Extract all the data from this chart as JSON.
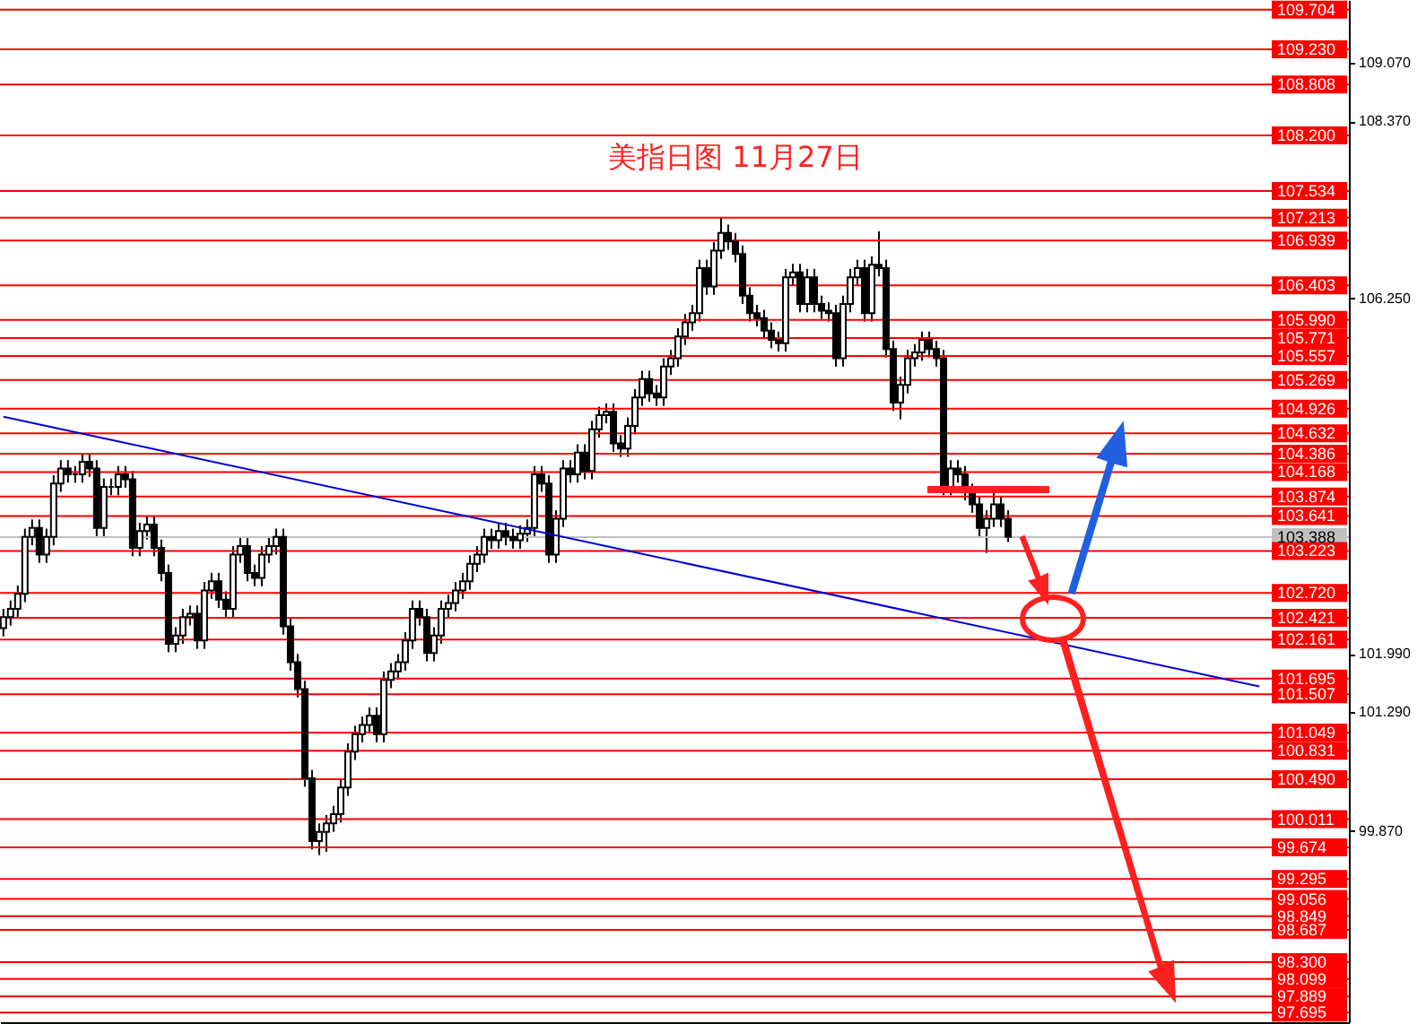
{
  "chart_data": {
    "type": "candlestick",
    "title": "美指日图  11月27日",
    "categories": [
      null,
      null,
      null,
      null,
      null,
      null,
      null,
      null,
      null,
      null,
      null,
      null,
      null,
      null,
      null,
      null,
      null,
      null,
      null,
      null,
      null,
      null,
      null,
      null,
      null,
      null,
      null,
      null,
      null,
      null,
      null,
      null,
      null,
      null,
      null,
      null,
      null,
      null,
      null,
      null,
      null,
      null,
      null,
      null,
      null,
      null,
      null,
      null,
      null,
      null,
      null,
      null,
      null,
      null,
      null,
      null,
      null,
      null,
      null,
      null,
      null,
      null,
      null,
      null,
      null,
      null,
      null,
      null,
      null,
      null,
      null,
      null,
      null,
      null,
      null,
      null,
      null,
      null,
      null,
      null,
      null,
      null,
      null,
      null,
      null,
      null,
      null,
      null,
      null,
      null,
      null,
      null,
      null,
      null,
      null,
      null,
      null,
      null,
      null,
      null,
      null,
      null,
      null,
      null,
      null,
      null,
      null,
      null,
      null,
      null,
      null,
      null,
      null,
      null,
      null,
      null,
      null,
      null,
      null,
      null,
      null,
      null,
      null,
      null,
      null,
      null,
      null,
      null,
      null,
      null,
      null,
      null,
      null,
      null,
      null,
      null,
      null,
      null,
      null,
      null,
      null,
      null,
      null,
      null,
      null,
      null,
      null,
      null,
      null,
      null,
      null,
      null,
      null,
      null,
      null,
      null,
      null,
      null,
      null,
      null,
      null,
      null,
      null,
      null,
      null,
      null,
      null,
      null,
      null,
      null,
      null,
      null,
      null,
      null,
      null,
      null,
      null,
      null,
      null,
      null,
      null,
      null,
      null,
      null,
      null,
      null,
      null,
      null
    ],
    "ohlc": [
      [
        102.3,
        102.53,
        102.2,
        102.43
      ],
      [
        102.43,
        102.63,
        102.33,
        102.53
      ],
      [
        102.53,
        102.81,
        102.43,
        102.71
      ],
      [
        102.71,
        103.49,
        102.61,
        103.39
      ],
      [
        103.39,
        103.6,
        103.29,
        103.5
      ],
      [
        103.5,
        103.6,
        103.08,
        103.18
      ],
      [
        103.18,
        103.49,
        103.08,
        103.39
      ],
      [
        103.39,
        104.13,
        103.29,
        104.03
      ],
      [
        104.03,
        104.31,
        103.93,
        104.21
      ],
      [
        104.21,
        104.31,
        104.04,
        104.14
      ],
      [
        104.14,
        104.24,
        104.04,
        104.14
      ],
      [
        104.14,
        104.39,
        104.04,
        104.29
      ],
      [
        104.29,
        104.39,
        104.11,
        104.21
      ],
      [
        104.21,
        104.31,
        103.4,
        103.5
      ],
      [
        103.5,
        104.09,
        103.4,
        103.99
      ],
      [
        103.99,
        104.09,
        103.89,
        103.99
      ],
      [
        103.99,
        104.24,
        103.89,
        104.14
      ],
      [
        104.14,
        104.24,
        103.98,
        104.08
      ],
      [
        104.08,
        104.18,
        103.16,
        103.26
      ],
      [
        103.26,
        103.56,
        103.16,
        103.46
      ],
      [
        103.46,
        103.64,
        103.36,
        103.54
      ],
      [
        103.54,
        103.64,
        103.16,
        103.26
      ],
      [
        103.26,
        103.36,
        102.86,
        102.96
      ],
      [
        102.96,
        103.06,
        102.01,
        102.11
      ],
      [
        102.11,
        102.31,
        102.01,
        102.21
      ],
      [
        102.21,
        102.53,
        102.11,
        102.43
      ],
      [
        102.43,
        102.57,
        102.33,
        102.47
      ],
      [
        102.47,
        102.57,
        102.05,
        102.15
      ],
      [
        102.15,
        102.85,
        102.05,
        102.75
      ],
      [
        102.75,
        102.96,
        102.65,
        102.86
      ],
      [
        102.86,
        102.96,
        102.54,
        102.64
      ],
      [
        102.64,
        102.74,
        102.43,
        102.53
      ],
      [
        102.53,
        103.28,
        102.43,
        103.18
      ],
      [
        103.18,
        103.38,
        103.08,
        103.28
      ],
      [
        103.28,
        103.38,
        102.86,
        102.96
      ],
      [
        102.96,
        103.06,
        102.8,
        102.9
      ],
      [
        102.9,
        103.28,
        102.8,
        103.18
      ],
      [
        103.18,
        103.38,
        103.08,
        103.28
      ],
      [
        103.28,
        103.49,
        103.18,
        103.39
      ],
      [
        103.39,
        103.49,
        102.22,
        102.32
      ],
      [
        102.32,
        102.42,
        101.79,
        101.89
      ],
      [
        101.89,
        101.99,
        101.47,
        101.57
      ],
      [
        101.57,
        101.67,
        100.4,
        100.5
      ],
      [
        100.5,
        100.6,
        99.65,
        99.75
      ],
      [
        99.75,
        99.96,
        99.58,
        99.86
      ],
      [
        99.86,
        100.06,
        99.62,
        99.96
      ],
      [
        99.96,
        100.17,
        99.86,
        100.07
      ],
      [
        100.07,
        100.49,
        99.97,
        100.39
      ],
      [
        100.39,
        100.92,
        100.29,
        100.82
      ],
      [
        100.82,
        101.13,
        100.72,
        101.03
      ],
      [
        101.03,
        101.24,
        100.93,
        101.14
      ],
      [
        101.14,
        101.35,
        101.04,
        101.25
      ],
      [
        101.25,
        101.35,
        100.93,
        101.03
      ],
      [
        101.03,
        101.78,
        100.93,
        101.68
      ],
      [
        101.68,
        101.88,
        101.58,
        101.78
      ],
      [
        101.78,
        101.99,
        101.68,
        101.89
      ],
      [
        101.89,
        102.25,
        101.79,
        102.15
      ],
      [
        102.15,
        102.63,
        102.05,
        102.53
      ],
      [
        102.53,
        102.63,
        102.33,
        102.43
      ],
      [
        102.43,
        102.53,
        101.9,
        102.0
      ],
      [
        102.0,
        102.31,
        101.9,
        102.21
      ],
      [
        102.21,
        102.63,
        102.11,
        102.53
      ],
      [
        102.53,
        102.7,
        102.43,
        102.6
      ],
      [
        102.6,
        102.85,
        102.5,
        102.75
      ],
      [
        102.75,
        102.96,
        102.65,
        102.86
      ],
      [
        102.86,
        103.17,
        102.76,
        103.07
      ],
      [
        103.07,
        103.28,
        102.97,
        103.18
      ],
      [
        103.18,
        103.49,
        103.08,
        103.39
      ],
      [
        103.39,
        103.49,
        103.25,
        103.35
      ],
      [
        103.35,
        103.56,
        103.25,
        103.46
      ],
      [
        103.46,
        103.56,
        103.29,
        103.39
      ],
      [
        103.39,
        103.49,
        103.25,
        103.35
      ],
      [
        103.35,
        103.53,
        103.25,
        103.43
      ],
      [
        103.43,
        103.6,
        103.33,
        103.5
      ],
      [
        103.5,
        104.24,
        103.4,
        104.14
      ],
      [
        104.14,
        104.24,
        103.93,
        104.03
      ],
      [
        104.03,
        104.13,
        103.08,
        103.18
      ],
      [
        103.18,
        103.71,
        103.08,
        103.61
      ],
      [
        103.61,
        104.31,
        103.51,
        104.21
      ],
      [
        104.21,
        104.31,
        104.04,
        104.14
      ],
      [
        104.14,
        104.5,
        104.04,
        104.4
      ],
      [
        104.4,
        104.5,
        104.08,
        104.18
      ],
      [
        104.18,
        104.78,
        104.08,
        104.68
      ],
      [
        104.68,
        104.95,
        104.58,
        104.85
      ],
      [
        104.85,
        104.99,
        104.75,
        104.89
      ],
      [
        104.89,
        104.99,
        104.41,
        104.51
      ],
      [
        104.51,
        104.61,
        104.35,
        104.45
      ],
      [
        104.45,
        104.82,
        104.35,
        104.72
      ],
      [
        104.72,
        105.16,
        104.62,
        105.06
      ],
      [
        105.06,
        105.38,
        104.96,
        105.28
      ],
      [
        105.28,
        105.38,
        105.01,
        105.11
      ],
      [
        105.11,
        105.21,
        104.96,
        105.06
      ],
      [
        105.06,
        105.53,
        104.96,
        105.43
      ],
      [
        105.43,
        105.63,
        105.33,
        105.53
      ],
      [
        105.53,
        105.89,
        105.43,
        105.79
      ],
      [
        105.79,
        106.06,
        105.69,
        105.96
      ],
      [
        105.96,
        106.17,
        105.86,
        106.07
      ],
      [
        106.07,
        106.71,
        105.97,
        106.61
      ],
      [
        106.61,
        106.71,
        106.29,
        106.39
      ],
      [
        106.39,
        106.92,
        106.29,
        106.82
      ],
      [
        106.82,
        107.21,
        106.72,
        107.03
      ],
      [
        107.03,
        107.13,
        106.83,
        106.93
      ],
      [
        106.93,
        107.03,
        106.68,
        106.78
      ],
      [
        106.78,
        106.88,
        106.18,
        106.28
      ],
      [
        106.28,
        106.38,
        105.97,
        106.07
      ],
      [
        106.07,
        106.17,
        105.91,
        106.01
      ],
      [
        106.01,
        106.11,
        105.76,
        105.86
      ],
      [
        105.86,
        105.96,
        105.65,
        105.75
      ],
      [
        105.75,
        105.85,
        105.61,
        105.71
      ],
      [
        105.71,
        106.6,
        105.61,
        106.5
      ],
      [
        106.5,
        106.66,
        106.4,
        106.56
      ],
      [
        106.56,
        106.66,
        106.08,
        106.18
      ],
      [
        106.18,
        106.6,
        106.08,
        106.5
      ],
      [
        106.5,
        106.6,
        106.08,
        106.18
      ],
      [
        106.18,
        106.28,
        106.0,
        106.1
      ],
      [
        106.1,
        106.2,
        105.97,
        106.07
      ],
      [
        106.07,
        106.17,
        105.43,
        105.53
      ],
      [
        105.53,
        106.28,
        105.43,
        106.18
      ],
      [
        106.18,
        106.6,
        106.08,
        106.5
      ],
      [
        106.5,
        106.71,
        106.4,
        106.61
      ],
      [
        106.61,
        106.71,
        105.97,
        106.07
      ],
      [
        106.07,
        106.75,
        105.97,
        106.65
      ],
      [
        106.65,
        107.05,
        106.51,
        106.61
      ],
      [
        106.61,
        106.71,
        105.54,
        105.64
      ],
      [
        105.64,
        105.74,
        104.9,
        105.0
      ],
      [
        105.0,
        105.31,
        104.8,
        105.21
      ],
      [
        105.21,
        105.63,
        105.11,
        105.53
      ],
      [
        105.53,
        105.7,
        105.43,
        105.6
      ],
      [
        105.6,
        105.85,
        105.5,
        105.75
      ],
      [
        105.75,
        105.85,
        105.54,
        105.64
      ],
      [
        105.64,
        105.74,
        105.43,
        105.53
      ],
      [
        105.53,
        105.63,
        103.89,
        103.99
      ],
      [
        103.99,
        104.31,
        103.89,
        104.21
      ],
      [
        104.21,
        104.31,
        104.04,
        104.14
      ],
      [
        104.14,
        104.24,
        103.83,
        103.93
      ],
      [
        103.93,
        104.03,
        103.68,
        103.78
      ],
      [
        103.78,
        103.88,
        103.4,
        103.5
      ],
      [
        103.5,
        103.71,
        103.2,
        103.61
      ],
      [
        103.61,
        104.0,
        103.51,
        103.78
      ],
      [
        103.78,
        103.88,
        103.51,
        103.61
      ],
      [
        103.61,
        103.71,
        103.33,
        103.39
      ],
      null,
      null,
      null,
      null,
      null,
      null,
      null,
      null,
      null,
      null,
      null,
      null,
      null,
      null,
      null,
      null,
      null,
      null,
      null,
      null,
      null,
      null,
      null,
      null,
      null,
      null,
      null,
      null,
      null,
      null,
      null,
      null,
      null,
      null,
      null,
      null,
      null,
      null,
      null,
      null,
      null,
      null,
      null,
      null,
      null,
      null,
      null
    ],
    "series": [
      {
        "type": "line",
        "color": "#0000cc",
        "values": [
          104.83,
          null,
          null,
          null,
          null,
          null,
          null,
          null,
          null,
          null,
          null,
          null,
          null,
          null,
          null,
          null,
          null,
          null,
          null,
          null,
          null,
          null,
          null,
          null,
          null,
          null,
          null,
          null,
          null,
          null,
          null,
          null,
          null,
          null,
          null,
          null,
          null,
          null,
          null,
          null,
          null,
          null,
          null,
          null,
          null,
          null,
          null,
          null,
          null,
          null,
          null,
          null,
          null,
          null,
          null,
          null,
          null,
          null,
          null,
          null,
          null,
          null,
          null,
          null,
          null,
          null,
          null,
          null,
          null,
          null,
          null,
          null,
          null,
          null,
          null,
          null,
          null,
          null,
          null,
          null,
          null,
          null,
          null,
          null,
          null,
          null,
          null,
          null,
          null,
          null,
          null,
          null,
          null,
          null,
          null,
          null,
          null,
          null,
          null,
          null,
          null,
          null,
          null,
          null,
          null,
          null,
          null,
          null,
          null,
          null,
          null,
          null,
          null,
          null,
          null,
          null,
          null,
          null,
          null,
          null,
          null,
          null,
          null,
          null,
          null,
          null,
          null,
          null,
          null,
          null,
          null,
          null,
          null,
          null,
          null,
          null,
          null,
          null,
          null,
          null,
          null,
          null,
          null,
          null,
          null,
          null,
          null,
          null,
          null,
          null,
          null,
          null,
          null,
          null,
          null,
          null,
          null,
          null,
          null,
          null,
          null,
          null,
          null,
          null,
          null,
          null,
          null,
          null,
          null,
          null,
          null,
          null,
          null,
          null,
          null,
          101.6,
          null,
          null,
          null,
          null,
          null,
          null,
          null,
          null,
          null,
          null,
          null,
          null
        ]
      }
    ],
    "ylim": [
      97.58,
      109.82
    ],
    "yticks": [
      {
        "value": 109.07,
        "label": "109.070"
      },
      {
        "value": 108.37,
        "label": "108.370"
      },
      {
        "value": 106.25,
        "label": "106.250"
      },
      {
        "value": 101.99,
        "label": "101.990"
      },
      {
        "value": 101.29,
        "label": "101.290"
      },
      {
        "value": 99.87,
        "label": "99.870"
      }
    ],
    "tick_labels": "y",
    "ref_lines": [
      {
        "axis": "y",
        "value": 103.388,
        "label": "103.388",
        "color": "#c0c0c0"
      },
      {
        "axis": "y",
        "value": 109.704,
        "label": "109.704",
        "color": "#ff0000"
      },
      {
        "axis": "y",
        "value": 109.23,
        "label": "109.230",
        "color": "#ff0000"
      },
      {
        "axis": "y",
        "value": 108.808,
        "label": "108.808",
        "color": "#ff0000"
      },
      {
        "axis": "y",
        "value": 108.2,
        "label": "108.200",
        "color": "#ff0000"
      },
      {
        "axis": "y",
        "value": 107.534,
        "label": "107.534",
        "color": "#ff0000"
      },
      {
        "axis": "y",
        "value": 107.213,
        "label": "107.213",
        "color": "#ff0000"
      },
      {
        "axis": "y",
        "value": 106.939,
        "label": "106.939",
        "color": "#ff0000"
      },
      {
        "axis": "y",
        "value": 106.403,
        "label": "106.403",
        "color": "#ff0000"
      },
      {
        "axis": "y",
        "value": 105.99,
        "label": "105.990",
        "color": "#ff0000"
      },
      {
        "axis": "y",
        "value": 105.771,
        "label": "105.771",
        "color": "#ff0000"
      },
      {
        "axis": "y",
        "value": 105.557,
        "label": "105.557",
        "color": "#ff0000"
      },
      {
        "axis": "y",
        "value": 105.269,
        "label": "105.269",
        "color": "#ff0000"
      },
      {
        "axis": "y",
        "value": 104.926,
        "label": "104.926",
        "color": "#ff0000"
      },
      {
        "axis": "y",
        "value": 104.632,
        "label": "104.632",
        "color": "#ff0000"
      },
      {
        "axis": "y",
        "value": 104.386,
        "label": "104.386",
        "color": "#ff0000"
      },
      {
        "axis": "y",
        "value": 104.168,
        "label": "104.168",
        "color": "#ff0000"
      },
      {
        "axis": "y",
        "value": 103.874,
        "label": "103.874",
        "color": "#ff0000"
      },
      {
        "axis": "y",
        "value": 103.641,
        "label": "103.641",
        "color": "#ff0000"
      },
      {
        "axis": "y",
        "value": 103.223,
        "label": "103.223",
        "color": "#ff0000"
      },
      {
        "axis": "y",
        "value": 102.72,
        "label": "102.720",
        "color": "#ff0000"
      },
      {
        "axis": "y",
        "value": 102.421,
        "label": "102.421",
        "color": "#ff0000"
      },
      {
        "axis": "y",
        "value": 102.161,
        "label": "102.161",
        "color": "#ff0000"
      },
      {
        "axis": "y",
        "value": 101.695,
        "label": "101.695",
        "color": "#ff0000"
      },
      {
        "axis": "y",
        "value": 101.507,
        "label": "101.507",
        "color": "#ff0000"
      },
      {
        "axis": "y",
        "value": 101.049,
        "label": "101.049",
        "color": "#ff0000"
      },
      {
        "axis": "y",
        "value": 100.831,
        "label": "100.831",
        "color": "#ff0000"
      },
      {
        "axis": "y",
        "value": 100.49,
        "label": "100.490",
        "color": "#ff0000"
      },
      {
        "axis": "y",
        "value": 100.011,
        "label": "100.011",
        "color": "#ff0000"
      },
      {
        "axis": "y",
        "value": 99.674,
        "label": "99.674",
        "color": "#ff0000"
      },
      {
        "axis": "y",
        "value": 99.295,
        "label": "99.295",
        "color": "#ff0000"
      },
      {
        "axis": "y",
        "value": 99.056,
        "label": "99.056",
        "color": "#ff0000"
      },
      {
        "axis": "y",
        "value": 98.849,
        "label": "98.849",
        "color": "#ff0000"
      },
      {
        "axis": "y",
        "value": 98.687,
        "label": "98.687",
        "color": "#ff0000"
      },
      {
        "axis": "y",
        "value": 98.3,
        "label": "98.300",
        "color": "#ff0000"
      },
      {
        "axis": "y",
        "value": 98.099,
        "label": "98.099",
        "color": "#ff0000"
      },
      {
        "axis": "y",
        "value": 97.889,
        "label": "97.889",
        "color": "#ff0000"
      },
      {
        "axis": "y",
        "value": 97.695,
        "label": "97.695",
        "color": "#ff0000"
      }
    ],
    "grid": false
  }
}
